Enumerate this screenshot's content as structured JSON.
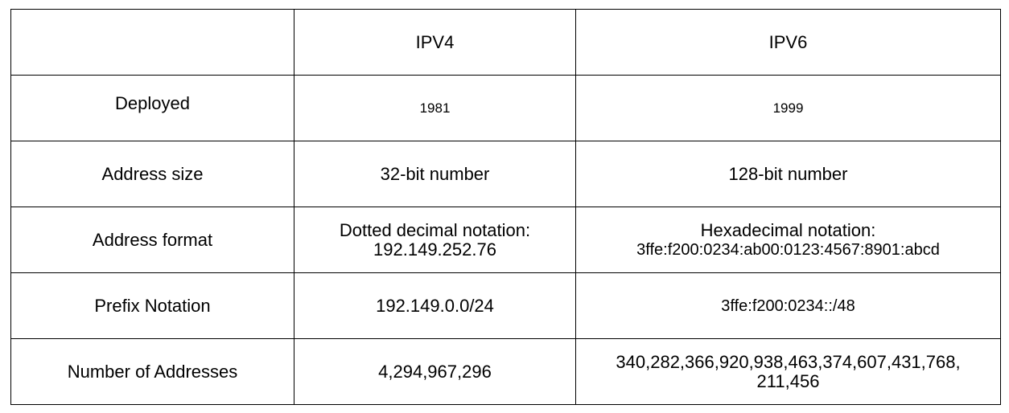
{
  "table": {
    "corner": "",
    "columns": [
      "IPV4",
      "IPV6"
    ],
    "rows": [
      {
        "label": "Deployed",
        "ipv4": [
          "1981"
        ],
        "ipv6": [
          "1999"
        ]
      },
      {
        "label": "Address size",
        "ipv4": [
          "32-bit number"
        ],
        "ipv6": [
          "128-bit number"
        ]
      },
      {
        "label": "Address format",
        "ipv4": [
          "Dotted decimal notation:",
          "192.149.252.76"
        ],
        "ipv6": [
          "Hexadecimal notation:",
          "3ffe:f200:0234:ab00:0123:4567:8901:abcd"
        ]
      },
      {
        "label": "Prefix Notation",
        "ipv4": [
          "192.149.0.0/24"
        ],
        "ipv6": [
          "3ffe:f200:0234::/48"
        ]
      },
      {
        "label": "Number of Addresses",
        "ipv4": [
          "4,294,967,296"
        ],
        "ipv6": [
          "340,282,366,920,938,463,374,607,431,768,",
          "211,456"
        ]
      }
    ]
  }
}
